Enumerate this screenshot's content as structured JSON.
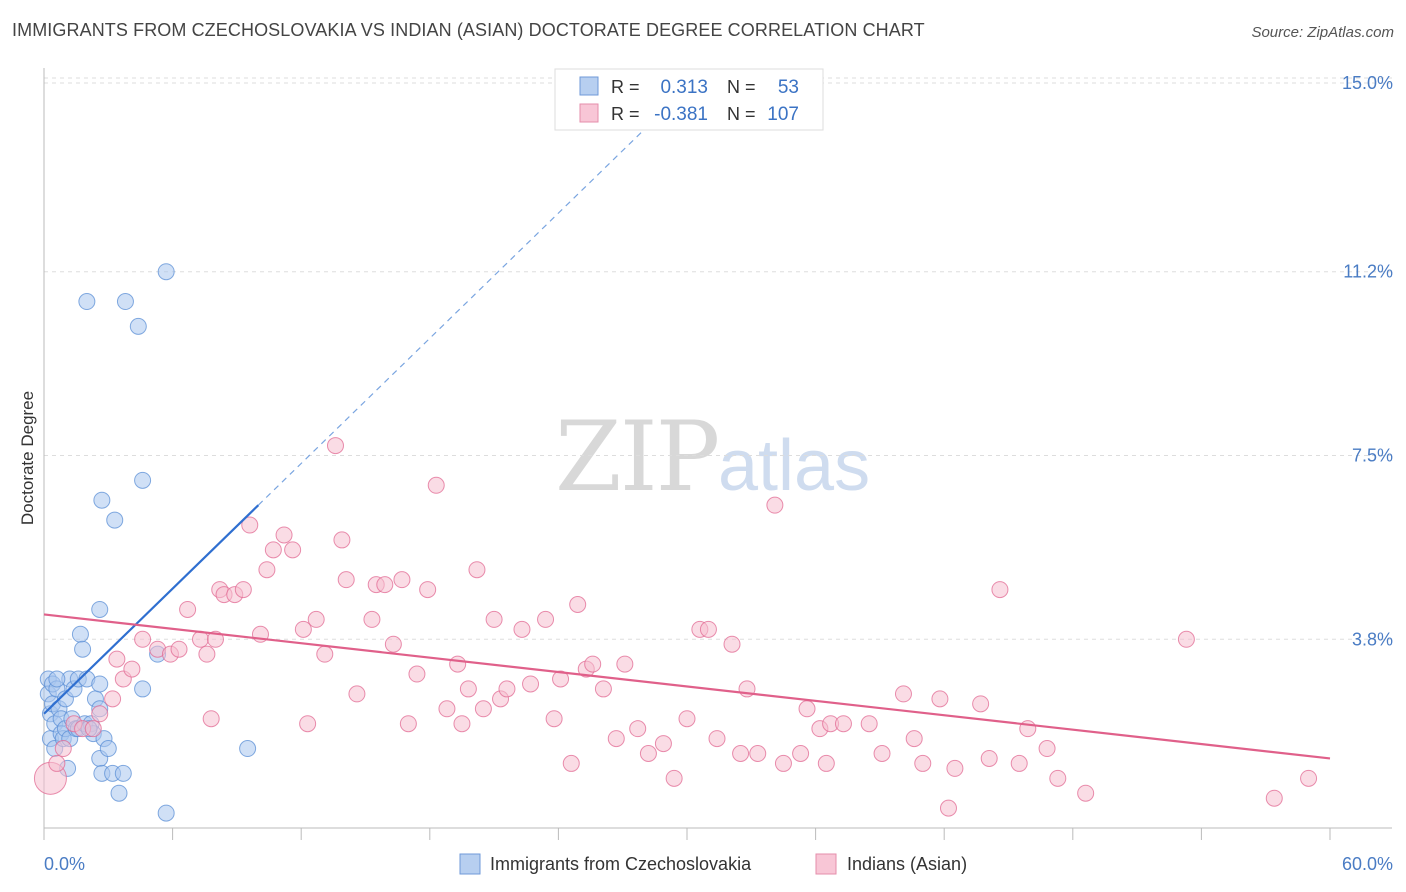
{
  "header": {
    "title": "IMMIGRANTS FROM CZECHOSLOVAKIA VS INDIAN (ASIAN) DOCTORATE DEGREE CORRELATION CHART",
    "source": "Source: ZipAtlas.com"
  },
  "watermark": {
    "zip": "ZIP",
    "atlas": "atlas"
  },
  "stats": {
    "r_label": "R =",
    "n_label": "N =",
    "rows": [
      {
        "r": "0.313",
        "n": "53",
        "color": "#5b8fd6"
      },
      {
        "r": "-0.381",
        "n": "107",
        "color": "#e88aa8"
      }
    ]
  },
  "chart_data": {
    "type": "scatter",
    "title": "IMMIGRANTS FROM CZECHOSLOVAKIA VS INDIAN (ASIAN) DOCTORATE DEGREE CORRELATION CHART",
    "xlabel": "",
    "ylabel": "Doctorate Degree",
    "xlim": [
      0,
      60
    ],
    "ylim": [
      0,
      15
    ],
    "x_tick_labels": [
      "0.0%",
      "60.0%"
    ],
    "y_ticks": [
      3.8,
      7.5,
      11.2,
      15.0
    ],
    "y_tick_labels": [
      "3.8%",
      "7.5%",
      "11.2%",
      "15.0%"
    ],
    "grid": true,
    "legend": {
      "placement": "bottom-center",
      "entries": [
        "Immigrants from Czechoslovakia",
        "Indians (Asian)"
      ]
    },
    "series": [
      {
        "name": "Immigrants from Czechoslovakia",
        "color": "#5b8fd6",
        "fill": "#a9c6ee",
        "trend": {
          "x0": 0,
          "y0": 2.3,
          "x1": 10,
          "y1": 6.5,
          "dashed_to_x": 28
        },
        "points": [
          [
            0.2,
            3.0
          ],
          [
            0.2,
            2.7
          ],
          [
            0.3,
            2.3
          ],
          [
            0.3,
            1.8
          ],
          [
            0.4,
            2.9
          ],
          [
            0.4,
            2.5
          ],
          [
            0.5,
            1.6
          ],
          [
            0.5,
            2.1
          ],
          [
            0.6,
            2.8
          ],
          [
            0.7,
            2.4
          ],
          [
            0.8,
            2.2
          ],
          [
            0.8,
            1.9
          ],
          [
            0.9,
            1.8
          ],
          [
            1.0,
            2.6
          ],
          [
            1.0,
            2.0
          ],
          [
            1.1,
            1.2
          ],
          [
            1.2,
            3.0
          ],
          [
            1.2,
            1.8
          ],
          [
            1.3,
            2.2
          ],
          [
            1.4,
            2.8
          ],
          [
            1.5,
            2.0
          ],
          [
            1.6,
            3.0
          ],
          [
            1.6,
            2.0
          ],
          [
            1.7,
            3.9
          ],
          [
            1.8,
            3.6
          ],
          [
            1.9,
            2.1
          ],
          [
            2.0,
            3.0
          ],
          [
            2.2,
            2.1
          ],
          [
            2.3,
            1.9
          ],
          [
            2.1,
            2.0
          ],
          [
            2.0,
            10.6
          ],
          [
            2.4,
            2.6
          ],
          [
            2.6,
            2.9
          ],
          [
            2.6,
            1.4
          ],
          [
            2.6,
            2.4
          ],
          [
            2.6,
            4.4
          ],
          [
            2.7,
            1.1
          ],
          [
            2.7,
            6.6
          ],
          [
            2.8,
            1.8
          ],
          [
            3.0,
            1.6
          ],
          [
            3.2,
            1.1
          ],
          [
            3.3,
            6.2
          ],
          [
            3.5,
            0.7
          ],
          [
            3.7,
            1.1
          ],
          [
            3.8,
            10.6
          ],
          [
            4.4,
            10.1
          ],
          [
            4.6,
            2.8
          ],
          [
            4.6,
            7.0
          ],
          [
            5.3,
            3.5
          ],
          [
            5.7,
            0.3
          ],
          [
            5.7,
            11.2
          ],
          [
            9.5,
            1.6
          ],
          [
            0.6,
            3.0
          ]
        ]
      },
      {
        "name": "Indians (Asian)",
        "color": "#e26a93",
        "fill": "#f6bfd0",
        "trend": {
          "x0": 0,
          "y0": 4.3,
          "x1": 60,
          "y1": 1.4
        },
        "points": [
          [
            0.3,
            1.0
          ],
          [
            0.6,
            1.3
          ],
          [
            0.9,
            1.6
          ],
          [
            1.4,
            2.1
          ],
          [
            1.8,
            2.0
          ],
          [
            2.3,
            2.0
          ],
          [
            2.6,
            2.3
          ],
          [
            3.2,
            2.6
          ],
          [
            3.4,
            3.4
          ],
          [
            3.7,
            3.0
          ],
          [
            4.1,
            3.2
          ],
          [
            4.6,
            3.8
          ],
          [
            5.3,
            3.6
          ],
          [
            5.9,
            3.5
          ],
          [
            6.3,
            3.6
          ],
          [
            6.7,
            4.4
          ],
          [
            7.3,
            3.8
          ],
          [
            7.6,
            3.5
          ],
          [
            7.8,
            2.2
          ],
          [
            8.0,
            3.8
          ],
          [
            8.2,
            4.8
          ],
          [
            8.4,
            4.7
          ],
          [
            8.9,
            4.7
          ],
          [
            9.3,
            4.8
          ],
          [
            9.6,
            6.1
          ],
          [
            10.1,
            3.9
          ],
          [
            10.4,
            5.2
          ],
          [
            10.7,
            5.6
          ],
          [
            11.2,
            5.9
          ],
          [
            11.6,
            5.6
          ],
          [
            12.1,
            4.0
          ],
          [
            12.3,
            2.1
          ],
          [
            12.7,
            4.2
          ],
          [
            13.1,
            3.5
          ],
          [
            13.6,
            7.7
          ],
          [
            13.9,
            5.8
          ],
          [
            14.1,
            5.0
          ],
          [
            14.6,
            2.7
          ],
          [
            15.3,
            4.2
          ],
          [
            15.5,
            4.9
          ],
          [
            15.9,
            4.9
          ],
          [
            16.3,
            3.7
          ],
          [
            16.7,
            5.0
          ],
          [
            17.0,
            2.1
          ],
          [
            17.4,
            3.1
          ],
          [
            17.9,
            4.8
          ],
          [
            18.3,
            6.9
          ],
          [
            18.8,
            2.4
          ],
          [
            19.3,
            3.3
          ],
          [
            19.5,
            2.1
          ],
          [
            19.8,
            2.8
          ],
          [
            20.2,
            5.2
          ],
          [
            20.5,
            2.4
          ],
          [
            21.0,
            4.2
          ],
          [
            21.3,
            2.6
          ],
          [
            21.6,
            2.8
          ],
          [
            22.3,
            4.0
          ],
          [
            22.7,
            2.9
          ],
          [
            23.4,
            4.2
          ],
          [
            23.8,
            2.2
          ],
          [
            24.1,
            3.0
          ],
          [
            24.6,
            1.3
          ],
          [
            24.9,
            4.5
          ],
          [
            25.3,
            3.2
          ],
          [
            25.6,
            3.3
          ],
          [
            26.1,
            2.8
          ],
          [
            26.7,
            1.8
          ],
          [
            27.1,
            3.3
          ],
          [
            27.7,
            2.0
          ],
          [
            28.2,
            1.5
          ],
          [
            28.9,
            1.7
          ],
          [
            29.4,
            1.0
          ],
          [
            30.0,
            2.2
          ],
          [
            30.6,
            4.0
          ],
          [
            31.0,
            4.0
          ],
          [
            31.4,
            1.8
          ],
          [
            32.1,
            3.7
          ],
          [
            32.5,
            1.5
          ],
          [
            32.8,
            2.8
          ],
          [
            33.3,
            1.5
          ],
          [
            34.1,
            6.5
          ],
          [
            34.5,
            1.3
          ],
          [
            35.3,
            1.5
          ],
          [
            35.6,
            2.4
          ],
          [
            36.2,
            2.0
          ],
          [
            36.5,
            1.3
          ],
          [
            36.7,
            2.1
          ],
          [
            37.3,
            2.1
          ],
          [
            38.5,
            2.1
          ],
          [
            39.1,
            1.5
          ],
          [
            40.1,
            2.7
          ],
          [
            40.6,
            1.8
          ],
          [
            41.0,
            1.3
          ],
          [
            41.8,
            2.6
          ],
          [
            42.2,
            0.4
          ],
          [
            42.5,
            1.2
          ],
          [
            43.7,
            2.5
          ],
          [
            44.1,
            1.4
          ],
          [
            44.6,
            4.8
          ],
          [
            45.5,
            1.3
          ],
          [
            45.9,
            2.0
          ],
          [
            46.8,
            1.6
          ],
          [
            47.3,
            1.0
          ],
          [
            48.6,
            0.7
          ],
          [
            53.3,
            3.8
          ],
          [
            57.4,
            0.6
          ],
          [
            59.0,
            1.0
          ]
        ]
      }
    ]
  }
}
